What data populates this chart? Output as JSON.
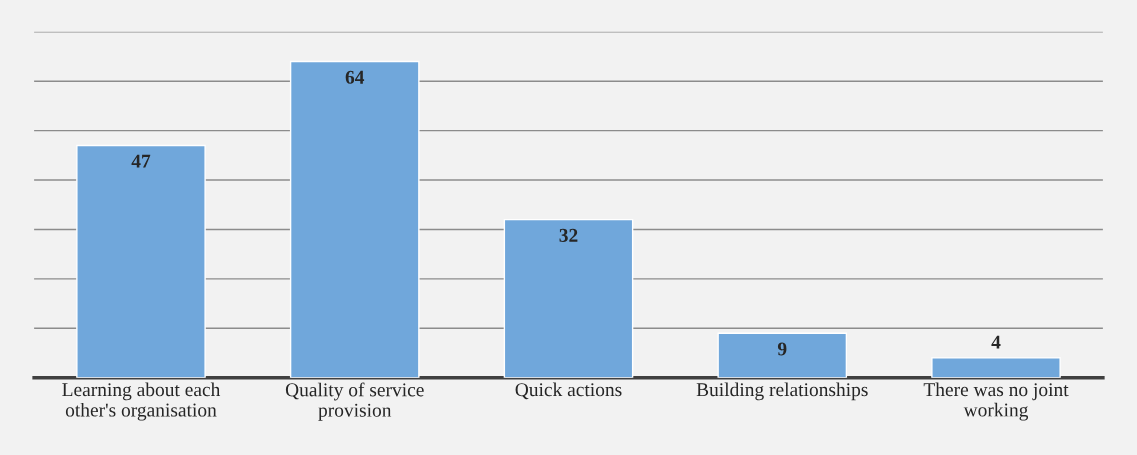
{
  "chart_data": {
    "type": "bar",
    "categories": [
      "Learning about each other's organisation",
      "Quality of service provision",
      "Quick actions",
      "Building relationships",
      "There was no joint working"
    ],
    "values": [
      47,
      64,
      32,
      9,
      4
    ],
    "color": "#70a7db",
    "data_labels": true,
    "ylim": [
      0,
      70
    ],
    "yticks": [
      {
        "value": 0,
        "label": null
      },
      {
        "value": 10,
        "label": null
      },
      {
        "value": 20,
        "label": null
      },
      {
        "value": 30,
        "label": null
      },
      {
        "value": 40,
        "label": null
      },
      {
        "value": 50,
        "label": null
      },
      {
        "value": 60,
        "label": null
      },
      {
        "value": 70,
        "label": null
      }
    ],
    "tick_labels": "x",
    "grid": "y"
  }
}
